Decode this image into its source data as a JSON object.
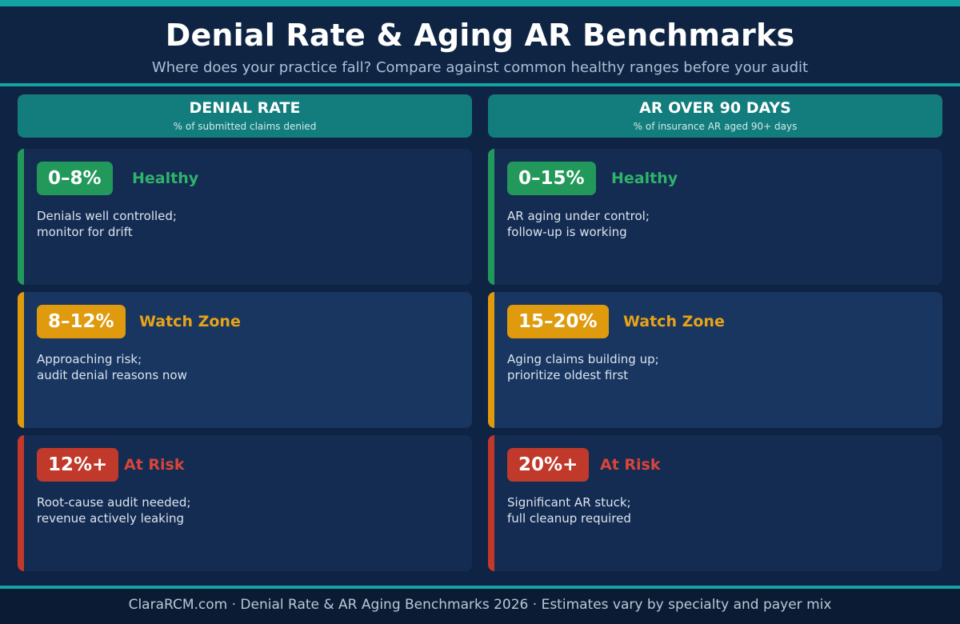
{
  "title": "Denial Rate & Aging AR Benchmarks",
  "subtitle": "Where does your practice fall? Compare against common healthy ranges before your audit",
  "colors": {
    "accent": "#14a3a3",
    "header_teal": "#137c7c",
    "healthy": "#22995a",
    "watch": "#e09a0e",
    "risk": "#c0392b",
    "healthy_text": "#2fb36a",
    "watch_text": "#e8a317",
    "risk_text": "#d9453a"
  },
  "columns": [
    {
      "title": "DENIAL RATE",
      "subtitle": "% of submitted claims denied",
      "tiers": [
        {
          "range": "0–8%",
          "status": "Healthy",
          "level": "healthy",
          "line1": "Denials well controlled;",
          "line2": "monitor for drift"
        },
        {
          "range": "8–12%",
          "status": "Watch Zone",
          "level": "watch",
          "line1": "Approaching risk;",
          "line2": "audit denial reasons now"
        },
        {
          "range": "12%+",
          "status": "At Risk",
          "level": "risk",
          "line1": "Root-cause audit needed;",
          "line2": "revenue actively leaking"
        }
      ]
    },
    {
      "title": "AR OVER 90 DAYS",
      "subtitle": "% of insurance AR aged 90+ days",
      "tiers": [
        {
          "range": "0–15%",
          "status": "Healthy",
          "level": "healthy",
          "line1": "AR aging under control;",
          "line2": "follow-up is working"
        },
        {
          "range": "15–20%",
          "status": "Watch Zone",
          "level": "watch",
          "line1": "Aging claims building up;",
          "line2": "prioritize oldest first"
        },
        {
          "range": "20%+",
          "status": "At Risk",
          "level": "risk",
          "line1": "Significant AR stuck;",
          "line2": "full cleanup required"
        }
      ]
    }
  ],
  "footer": "ClaraRCM.com · Denial Rate & AR Aging Benchmarks 2026 · Estimates vary by specialty and payer mix"
}
